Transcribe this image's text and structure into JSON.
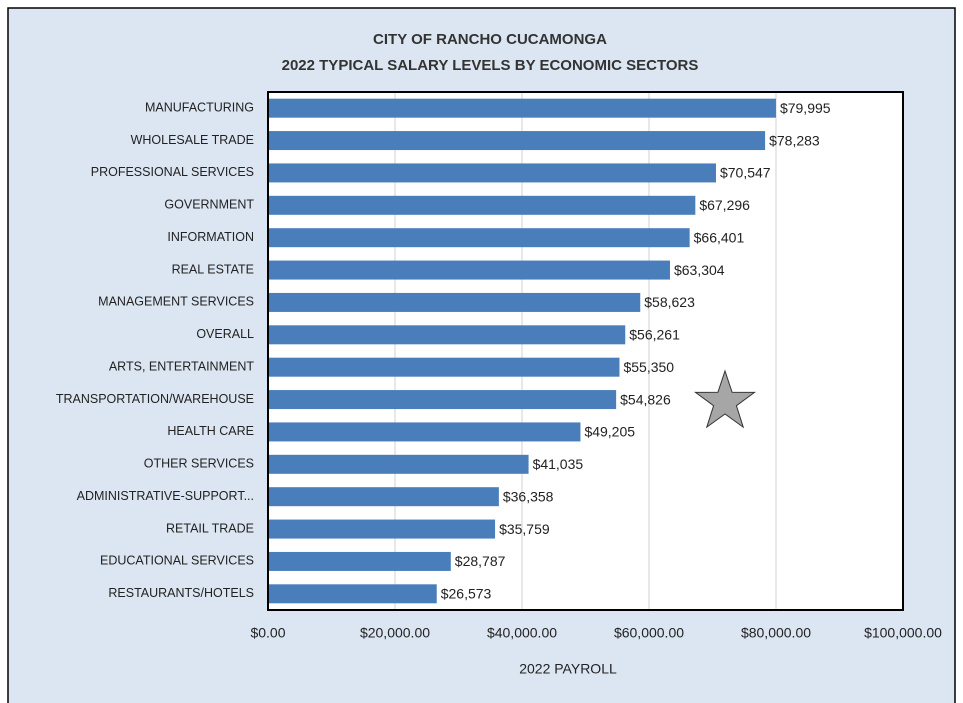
{
  "chart_data": {
    "type": "bar",
    "orientation": "horizontal",
    "title": "CITY OF RANCHO CUCAMONGA",
    "subtitle": "2022  TYPICAL SALARY LEVELS BY ECONOMIC SECTORS",
    "x_label": "2022 PAYROLL",
    "categories": [
      "MANUFACTURING",
      "WHOLESALE TRADE",
      "PROFESSIONAL SERVICES",
      "GOVERNMENT",
      "INFORMATION",
      "REAL ESTATE",
      "MANAGEMENT SERVICES",
      "OVERALL",
      "ARTS, ENTERTAINMENT",
      "TRANSPORTATION/WAREHOUSE",
      "HEALTH CARE",
      "OTHER SERVICES",
      "ADMINISTRATIVE-SUPPORT...",
      "RETAIL TRADE",
      "EDUCATIONAL SERVICES",
      "RESTAURANTS/HOTELS"
    ],
    "values": [
      79995,
      78283,
      70547,
      67296,
      66401,
      63304,
      58623,
      56261,
      55350,
      54826,
      49205,
      41035,
      36358,
      35759,
      28787,
      26573
    ],
    "value_labels": [
      "$79,995",
      "$78,283",
      "$70,547",
      "$67,296",
      "$66,401",
      "$63,304",
      "$58,623",
      "$56,261",
      "$55,350",
      "$54,826",
      "$49,205",
      "$41,035",
      "$36,358",
      "$35,759",
      "$28,787",
      "$26,573"
    ],
    "color": "#4a7ebb",
    "xlim": [
      0,
      100000
    ],
    "xticks": [
      {
        "value": 0,
        "label": "$0.00"
      },
      {
        "value": 20000,
        "label": "$20,000.00"
      },
      {
        "value": 40000,
        "label": "$40,000.00"
      },
      {
        "value": 60000,
        "label": "$60,000.00"
      },
      {
        "value": 80000,
        "label": "$80,000.00"
      },
      {
        "value": 100000,
        "label": "$100,000.00"
      }
    ],
    "grid": true
  }
}
